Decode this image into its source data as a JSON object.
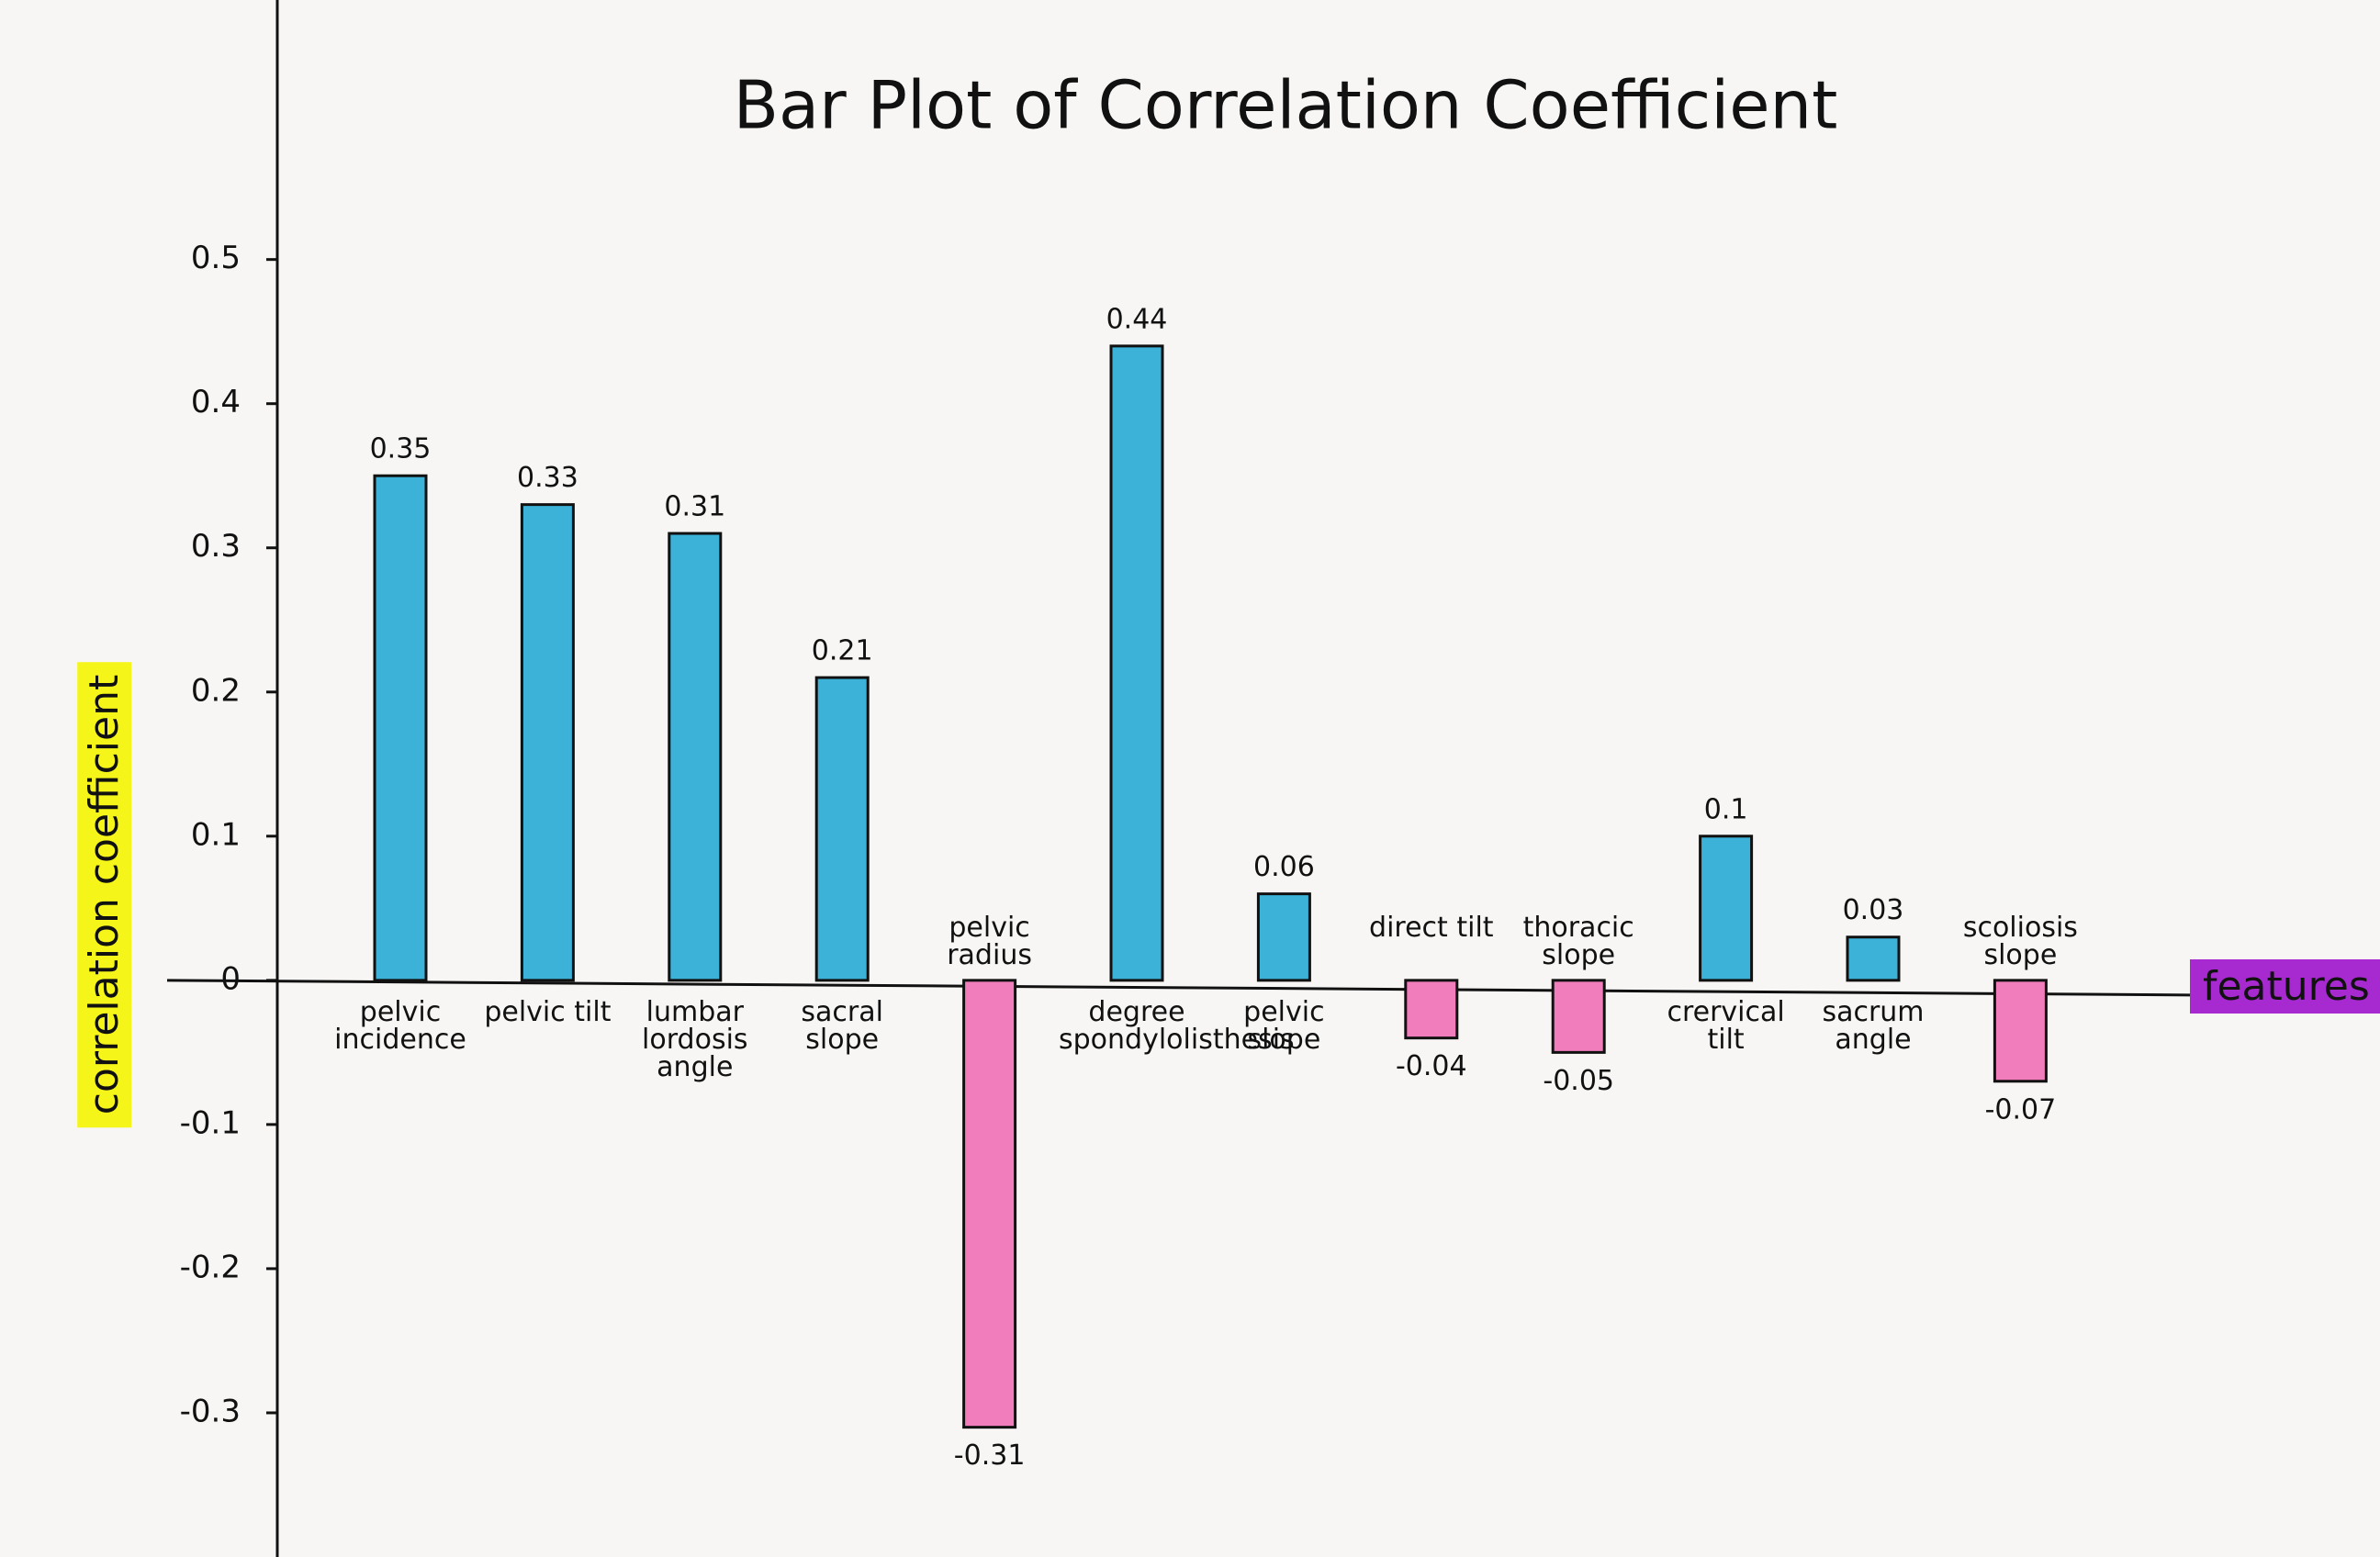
{
  "chart_data": {
    "type": "bar",
    "title": "Bar Plot of Correlation Coefficient",
    "x_label": "features",
    "y_label": "correlation coefficient",
    "categories": [
      "pelvic incidence",
      "pelvic tilt",
      "lumbar lordosis angle",
      "sacral slope",
      "pelvic radius",
      "degree spondylolisthesis",
      "pelvic slope",
      "direct tilt",
      "thoracic slope",
      "crervical tilt",
      "sacrum angle",
      "scoliosis slope"
    ],
    "values": [
      0.35,
      0.33,
      0.31,
      0.21,
      -0.31,
      0.44,
      0.06,
      -0.04,
      -0.05,
      0.1,
      0.03,
      -0.07
    ],
    "colors": [
      "#3cb2d8",
      "#3cb2d8",
      "#3cb2d8",
      "#3cb2d8",
      "#f27dbd",
      "#3cb2d8",
      "#3cb2d8",
      "#f27dbd",
      "#f27dbd",
      "#3cb2d8",
      "#3cb2d8",
      "#f27dbd"
    ],
    "ylim": [
      -0.4,
      0.68
    ],
    "yticks": [
      -0.3,
      -0.2,
      -0.1,
      0,
      0.1,
      0.2,
      0.3,
      0.4,
      0.5
    ],
    "grid": false
  }
}
